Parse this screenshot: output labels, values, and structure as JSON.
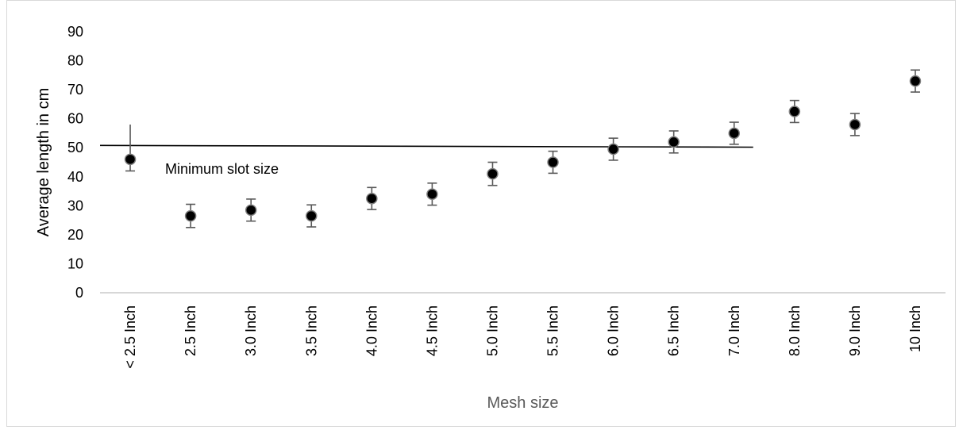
{
  "chart_data": {
    "type": "scatter",
    "title": "",
    "xlabel": "Mesh size",
    "ylabel": "Average length in cm",
    "categories": [
      "< 2.5 Inch",
      "2.5 Inch",
      "3.0 Inch",
      "3.5 Inch",
      "4.0 Inch",
      "4.5 Inch",
      "5.0 Inch",
      "5.5 Inch",
      "6.0 Inch",
      "6.5 Inch",
      "7.0 Inch",
      "8.0 Inch",
      "9.0 Inch",
      "10 Inch"
    ],
    "values": [
      46,
      26.5,
      28.5,
      26.5,
      32.5,
      34,
      41,
      45,
      49.5,
      52,
      55,
      62.5,
      58,
      73
    ],
    "error_low": [
      4,
      4,
      3.8,
      3.8,
      3.8,
      3.8,
      4,
      3.8,
      3.8,
      3.8,
      3.8,
      3.8,
      3.8,
      3.8
    ],
    "error_high": [
      12,
      4,
      3.8,
      3.8,
      3.8,
      3.8,
      4,
      3.8,
      3.8,
      3.8,
      3.8,
      3.8,
      3.8,
      3.8
    ],
    "ylim": [
      0,
      90
    ],
    "yticks": [
      "0",
      "10",
      "20",
      "30",
      "40",
      "50",
      "60",
      "70",
      "80",
      "90"
    ],
    "grid": false,
    "legend": "none",
    "reference_line": {
      "label": "Minimum slot size",
      "y_start": 50.8,
      "y_end": 50.2,
      "x_from": "< 2.5 Inch",
      "x_to": "7.0 Inch"
    },
    "colors": {
      "marker_fill": "#000000",
      "marker_stroke": "#7f7f7f",
      "error_bar": "#595959",
      "reference_line": "#000000",
      "axis_line": "#bfbfbf",
      "xlabel_color": "#595959",
      "ylabel_color": "#000000"
    }
  }
}
